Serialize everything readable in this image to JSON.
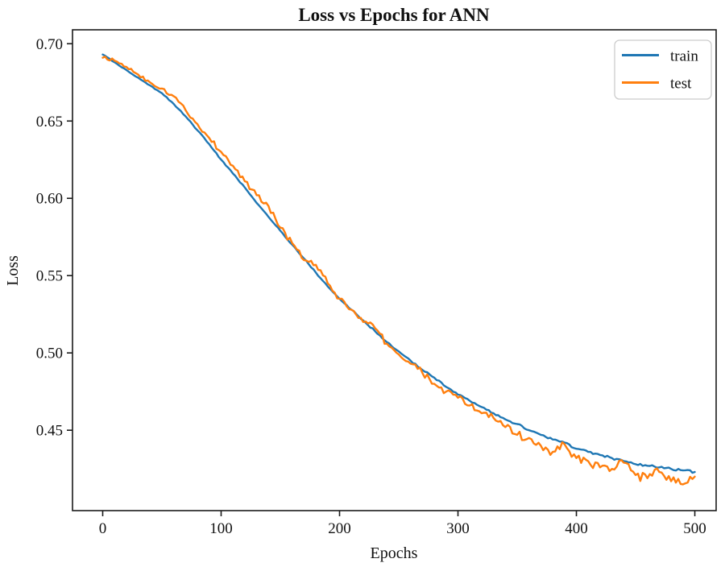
{
  "figure": {
    "title": "Loss vs Epochs for ANN",
    "xlabel": "Epochs",
    "ylabel": "Loss"
  },
  "legend": {
    "position": "upper-right",
    "items": [
      {
        "label": "train",
        "color": "#1f77b4"
      },
      {
        "label": "test",
        "color": "#ff7f0e"
      }
    ]
  },
  "chart_data": {
    "type": "line",
    "title": "Loss vs Epochs for ANN",
    "xlabel": "Epochs",
    "ylabel": "Loss",
    "xlim": [
      -25.5,
      518
    ],
    "ylim": [
      0.398,
      0.709
    ],
    "xticks": [
      0,
      100,
      200,
      300,
      400,
      500
    ],
    "yticks": [
      0.45,
      0.5,
      0.55,
      0.6,
      0.65,
      0.7
    ],
    "grid": false,
    "legend_position": "upper right",
    "x": [
      0,
      10,
      20,
      30,
      40,
      50,
      60,
      70,
      80,
      90,
      100,
      110,
      120,
      130,
      140,
      150,
      160,
      170,
      180,
      190,
      200,
      210,
      220,
      230,
      240,
      250,
      260,
      270,
      280,
      290,
      300,
      310,
      320,
      330,
      340,
      350,
      360,
      370,
      380,
      390,
      400,
      410,
      420,
      430,
      440,
      450,
      460,
      470,
      480,
      490,
      500
    ],
    "series": [
      {
        "name": "train",
        "color": "#1f77b4",
        "noise_amplitude": 0.0008,
        "values": [
          0.693,
          0.688,
          0.683,
          0.678,
          0.673,
          0.668,
          0.661,
          0.653,
          0.644,
          0.635,
          0.625,
          0.616,
          0.607,
          0.597,
          0.588,
          0.579,
          0.57,
          0.561,
          0.552,
          0.543,
          0.535,
          0.528,
          0.521,
          0.514,
          0.507,
          0.501,
          0.495,
          0.489,
          0.484,
          0.478,
          0.473,
          0.469,
          0.465,
          0.461,
          0.457,
          0.454,
          0.45,
          0.447,
          0.444,
          0.442,
          0.438,
          0.436,
          0.434,
          0.432,
          0.43,
          0.428,
          0.427,
          0.426,
          0.425,
          0.424,
          0.423
        ]
      },
      {
        "name": "test",
        "color": "#ff7f0e",
        "noise_amplitude": 0.0035,
        "values": [
          0.691,
          0.689,
          0.685,
          0.68,
          0.675,
          0.671,
          0.666,
          0.657,
          0.648,
          0.639,
          0.63,
          0.621,
          0.611,
          0.602,
          0.595,
          0.581,
          0.571,
          0.56,
          0.557,
          0.545,
          0.535,
          0.528,
          0.52,
          0.516,
          0.506,
          0.499,
          0.493,
          0.487,
          0.48,
          0.475,
          0.471,
          0.466,
          0.461,
          0.458,
          0.452,
          0.447,
          0.445,
          0.44,
          0.436,
          0.441,
          0.432,
          0.43,
          0.426,
          0.425,
          0.429,
          0.421,
          0.419,
          0.423,
          0.417,
          0.415,
          0.42
        ]
      }
    ]
  }
}
